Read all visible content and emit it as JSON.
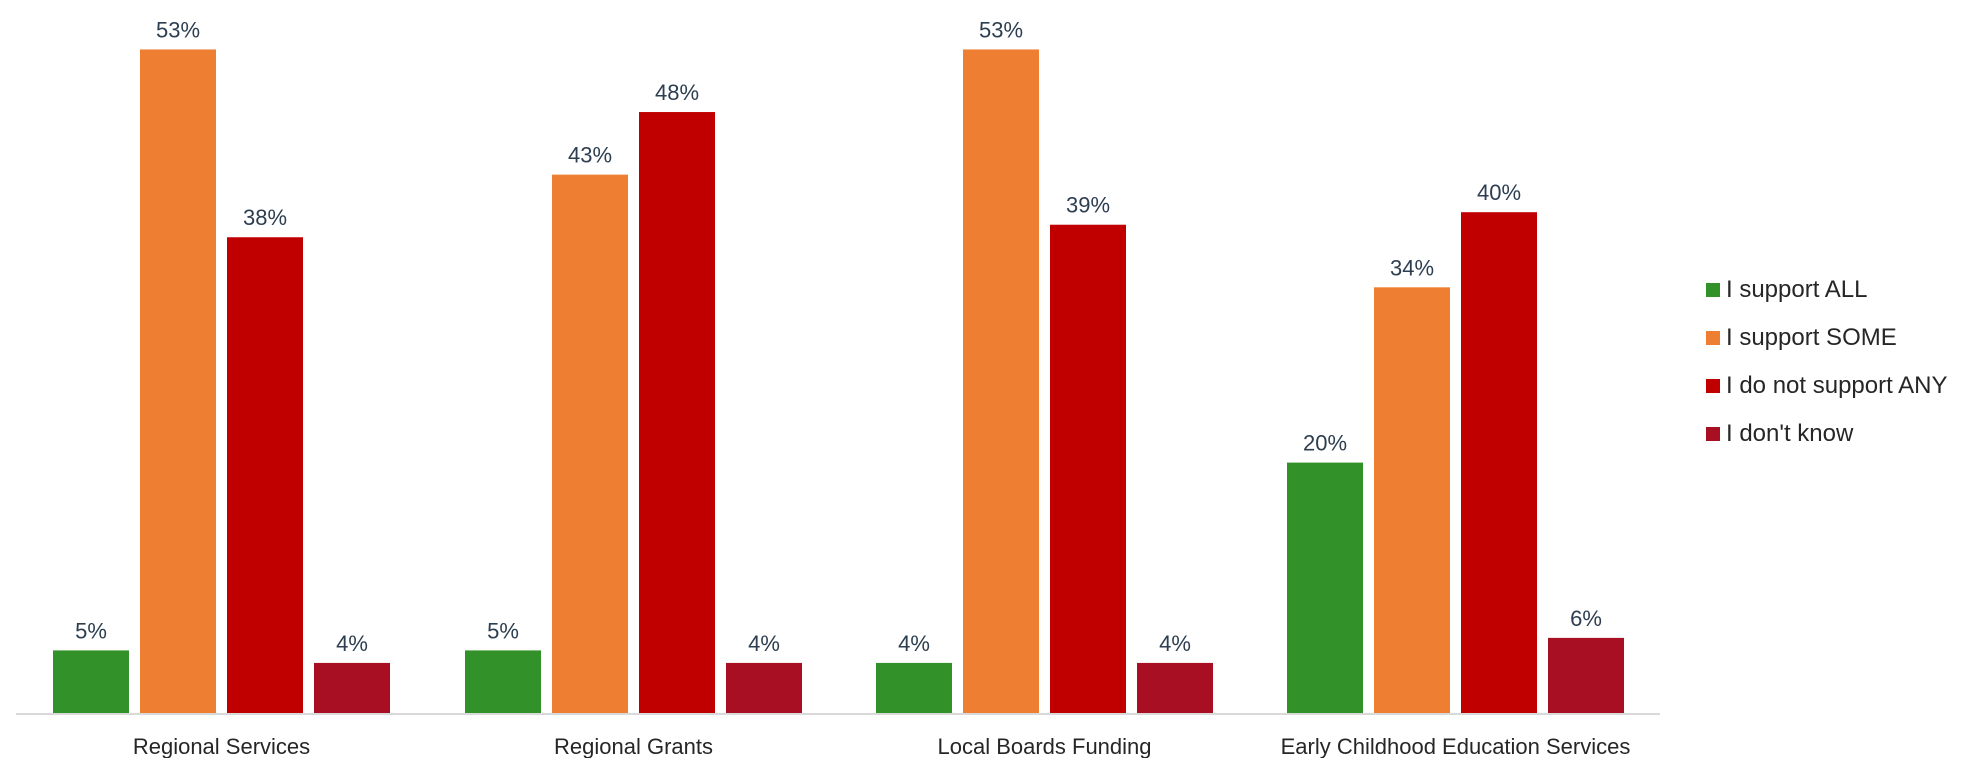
{
  "chart_data": {
    "type": "bar",
    "title": "",
    "xlabel": "",
    "ylabel": "",
    "ylim": [
      0,
      55
    ],
    "grid": false,
    "legend_position": "right",
    "value_suffix": "%",
    "categories": [
      "Regional Services",
      "Regional Grants",
      "Local Boards Funding",
      "Early Childhood Education Services"
    ],
    "series": [
      {
        "name": "I support ALL",
        "color": "#339129",
        "values": [
          5,
          5,
          4,
          20
        ]
      },
      {
        "name": "I support SOME",
        "color": "#ee7e31",
        "values": [
          53,
          43,
          53,
          34
        ]
      },
      {
        "name": "I do not support ANY",
        "color": "#c00000",
        "values": [
          38,
          48,
          39,
          40
        ]
      },
      {
        "name": "I don't know",
        "color": "#a80f22",
        "values": [
          4,
          4,
          4,
          6
        ]
      }
    ]
  }
}
